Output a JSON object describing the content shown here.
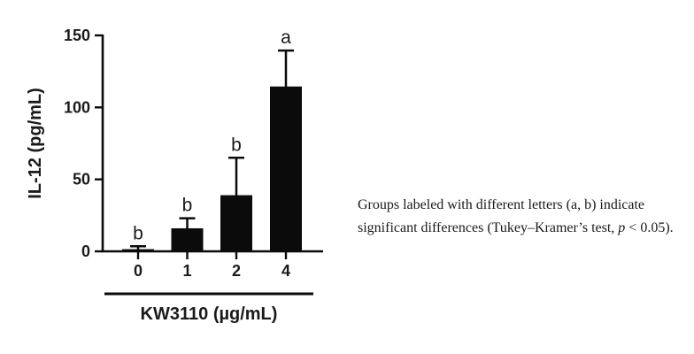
{
  "note": {
    "line1": "Groups labeled with different letters (a, b) indicate",
    "line2_pre": "significant differences (Tukey–Kramer’s test, ",
    "line2_italic": "p",
    "line2_post": " < 0.05)."
  },
  "chart_data": {
    "type": "bar",
    "title": "",
    "xlabel": "KW3110 (µg/mL)",
    "ylabel": "IL-12 (pg/mL)",
    "categories": [
      "0",
      "1",
      "2",
      "4"
    ],
    "values": [
      1.5,
      16,
      39,
      114.5
    ],
    "errors_upper": [
      2,
      7,
      26,
      25
    ],
    "sig_letters": [
      "b",
      "b",
      "b",
      "a"
    ],
    "yticks": [
      0,
      50,
      100,
      150
    ],
    "ylim": [
      0,
      150
    ],
    "grid": false,
    "legend": "none",
    "bar_color": "#0b0b0b",
    "axis_color": "#0b0b0b",
    "text_color": "#1a1a1a"
  }
}
